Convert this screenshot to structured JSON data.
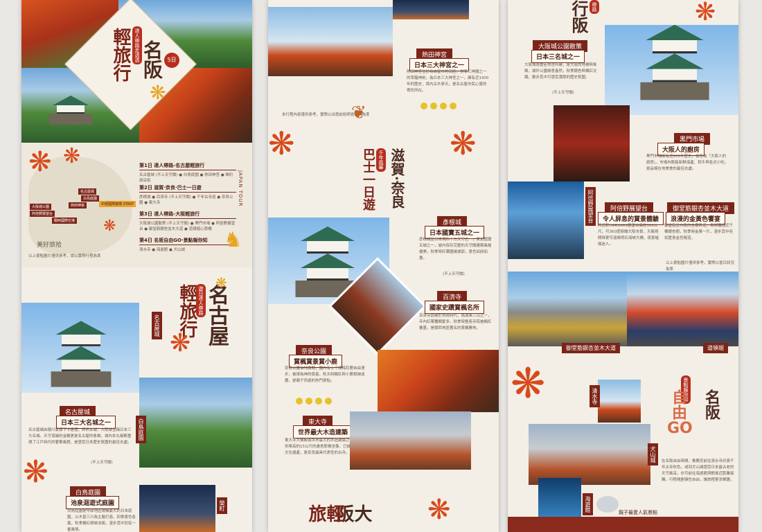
{
  "panel1": {
    "hero": {
      "title_v1": "名阪",
      "title_v2": "輕旅行",
      "sub_v": "達人帶路走透透",
      "days_badge": "5日"
    },
    "itinerary": [
      {
        "title": "第1日 達人帶路-名古屋輕旅行",
        "items": "名古屋城 (不上天守閣) ● 白鳥庭園 ● 熱田神宮 ● 榮町商店街"
      },
      {
        "title": "第2日 滋賀·奈良·巴士一日遊",
        "items": "彥根城 ● 百濟寺 (不上天守閣) ● 千年古寺巡 ● 奈良公園 ● 東大寺"
      },
      {
        "title": "第3日 達人帶路-大阪輕旅行",
        "items": "大阪城公園散策 (不上天守閣) ● 黑門市場 ● 阿倍野展望台 ● 御堂筋銀杏並木大道 ● 道頓堀心齋橋"
      },
      {
        "title": "第4日 名阪自由GO·景點報你知",
        "items": "清水寺 ● 海遊館 ● 犬山城"
      }
    ],
    "map_labels": [
      "名古屋城",
      "白鳥庭園",
      "熱田神宮",
      "中部國際機場 START",
      "大阪城公園",
      "阿倍野展望台",
      "關西國際空港"
    ],
    "tour_side": "JAPAN TOUR",
    "signature": "美好旅拾",
    "footnote": "以上景點圖片僅供參考，請以實際行程為準",
    "nagoya_title_v1": "名古屋",
    "nagoya_title_v2": "輕旅行",
    "nagoya_sub_v": "遊日達人帶路",
    "nagoya_castle_vlabel": "名古屋城",
    "shiratori_vlabel": "白鳥庭園",
    "spot1": {
      "tag": "名古屋城",
      "sub": "日本三大名城之一",
      "desc": "名古屋城由德川家康下令建造，與熊本城、大阪城並稱日本三大名城。天守頂端的金鯱更是名古屋的象徵，城內本丸御殿重現了江戶時代的奢華風貌，是感受日本歷史氛圍的最佳去處。",
      "note": "(不上天守閣)"
    },
    "spot2": {
      "tag": "白鳥庭園",
      "sub": "池泉迴遊式庭園",
      "desc": "白鳥庭園是中部地區規模最大的日本庭園，以木曾三川為主題打造，四季景色各異，秋季楓紅倒映池面，漫步其中別有一番風情。"
    },
    "last_vlabel": "榮町"
  },
  "panel2": {
    "atsuta": {
      "tag": "熱田神宮",
      "sub": "日本三大神宮之一",
      "desc": "熱田神宮位於名古屋市熱田區，供奉三神器之一的草薙神劍，為日本三大神宮之一，擁有近1900年的歷史，境內古木參天，是名古屋市民心靈的寄託所在。"
    },
    "footnote": "本行程內容僅供參考，實際以出發前說明會資料為準",
    "title_v1": "滋賀·奈良",
    "title_v2": "巴士一日遊",
    "stamp": "千年風華",
    "hikone": {
      "tag": "彥根城",
      "sub": "日本國寶五城之一",
      "desc": "彥根城是日本現存十二天守之一，更是國寶五城之一，城內保存完整的天守閣建築風格優美，秋季時紅葉圍繞城郭，景色如詩如畫。",
      "note": "(不上天守閣)"
    },
    "hyakusai": {
      "tag": "百濟寺",
      "sub": "國家史蹟賞楓名所",
      "desc": "百濟寺創建於飛鳥時代，為湖東三山之一，寺內紅葉種類繁多，秋季時整座寺院被楓紅覆蓋，是關西地區著名的賞楓勝地。"
    },
    "nara": {
      "tag": "奈良公園",
      "sub": "賞楓賞景賞小鹿",
      "desc": "奈良公園佔地廣闊，園內有上千頭梅花鹿自由漫步，被視為神的使者。秋天時楓紅與小鹿相映成趣，是親子同遊的熱門景點。"
    },
    "todaiji": {
      "tag": "東大寺",
      "sub": "世界最大木造建築",
      "desc": "東大寺大佛殿為世界最大的木造建築之一，殿內供奉高約15公尺的盧舍那佛坐像，已被列為世界文化遺產，是奈良最具代表性的古寺。"
    },
    "bottom_title_v": "大阪",
    "bottom_title_v2": "輕旅"
  },
  "panel3": {
    "top_title_v": "帶路",
    "top_title_main": "行阪",
    "osaka_castle": {
      "tag": "大阪城公園散策",
      "sub": "日本三名城之一",
      "desc": "大阪城為豐臣秀吉所建，是大阪的地標與象徵，城外公園綠意盎然，秋季銀杏與楓紅交織，散步其中可感受濃厚的歷史氛圍。",
      "note": "(不上天守閣)"
    },
    "kuromon": {
      "tag": "黑門市場",
      "sub": "大阪人的廚房",
      "desc": "黑門市場擁有近200年歷史，被譽為「大阪人的廚房」，市場內販售新鮮海產、和牛與各式小吃，是品嚐在地美食的最佳去處。"
    },
    "abeno_vlabel": "阿倍野展望台",
    "abeno": {
      "tag": "阿倍野展望台",
      "sub": "令人屏息的賞景體驗",
      "desc": "阿倍野HARUKAS展望台高約300公尺，可360度俯瞰大阪市景，天氣晴朗時更可遠眺明石海峽大橋，夜景璀璨迷人。"
    },
    "midosuji": {
      "tag": "御堂筋銀杏並木大道",
      "sub": "浪漫的金黃色饗宴",
      "desc": "御堂筋是大阪的主要幹道，兩側種植近千棵銀杏樹，秋季時金黃一片，漫步其中宛如置身金色隧道。"
    },
    "footnote": "以上景點圖片僅供參考，實際以當日狀況為準",
    "midosuji_caption": "御堂筋銀杏並木大道",
    "dotonbori_caption": "道頓堀",
    "go_v": "景點報你知",
    "go_title1": "自由",
    "go_title2": "名阪",
    "go_title3": "GO",
    "kiyomizu_vlabel": "清水寺",
    "inuyama_vlabel": "犬山城",
    "kaiyukan_vlabel": "海遊館",
    "go_desc": "在名阪自由時間，推薦您前往清水寺欣賞千年古寺秋色，或到犬山城感受日本最古老的天守風采，亦可前往海遊館與鯨鯊近距離接觸，行程規劃彈性自由，讓旅程更添樂趣。",
    "kaiyukan_caption": "親子最愛人氣景點"
  },
  "colors": {
    "accent": "#7c2418",
    "gold": "#e7c12b",
    "maple": "#d84a1b"
  }
}
